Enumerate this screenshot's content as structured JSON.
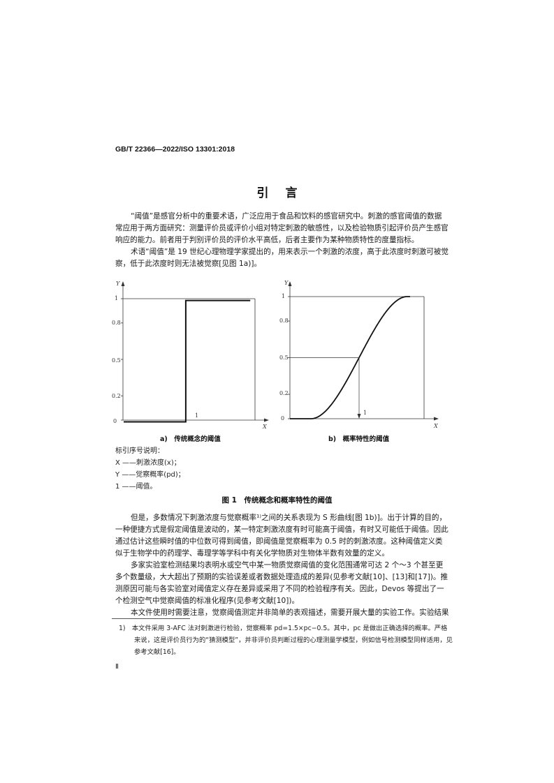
{
  "header": {
    "standard_code": "GB/T 22366—2022/ISO 13301:2018"
  },
  "title": "引言",
  "paragraphs": [
    [
      "“阈值”是感官分析中的重要术语，广泛应用于食品和饮料的感官研究中。刺激的感官阈值的数据",
      "常应用于两方面研究：测量评价员或评价小组对特定刺激的敏感性，以及检验物质引起评价员产生感官",
      "响应的能力。前者用于判别评价员的评价水平高低，后者主要作为某种物质特性的度量指标。"
    ],
    [
      "术语“阈值”是 19 世纪心理物理学家提出的，用来表示一个刺激的浓度，高于此浓度时刺激可被觉",
      "察，低于此浓度时则无法被觉察[见图 1a)]。"
    ],
    [
      "但是，多数情况下刺激浓度与觉察概率¹⁾之间的关系表现为 S 形曲线[图 1b)]。出于计算的目的，",
      "一种便捷方式是假定阈值是波动的，某一特定刺激浓度有时可能高于阈值，有时又可能低于阈值。因此",
      "通过估计这些瞬时值的中位数可得到阈值，即阈值是觉察概率为 0.5 时的刺激浓度。这种阈值定义类",
      "似于生物学中的药理学、毒理学等学科中有关化学物质对生物体半数有效量的定义。"
    ],
    [
      "多家实验室检测结果均表明水或空气中某一物质觉察阈值的变化范围通常可达 2 个～3 个甚至更",
      "多个数量级，大大超出了预期的实验误差或者数据处理造成的差异(见参考文献[10]、[13]和[17])。推",
      "测原因可能与各实验室对阈值定义存在差异或采用了不同的检验程序有关。因此，Devos 等提出了一",
      "个检测空气中觉察阈值的标准化程序(见参考文献[10])。"
    ],
    [
      "本文件使用时需要注意，觉察阈值测定并非简单的表观描述，需要开展大量的实验工作。实验结果"
    ]
  ],
  "figure": {
    "caption": "图 1　传统概念和概率特性的阈值",
    "sub_a": "a)　传统概念的阈值",
    "sub_b": "b)　概率特性的阈值",
    "legend_title": "标引序号说明：",
    "legend": [
      "X ——刺激浓度(x)；",
      "Y ——觉察概率(pd)；",
      "1 ——阈值。"
    ]
  },
  "chart_data": [
    {
      "type": "line",
      "title": "传统概念的阈值",
      "xlabel": "X",
      "ylabel": "Y",
      "yticks": [
        "0",
        "0.2",
        "0.5",
        "0.8",
        "1"
      ],
      "ylim": [
        0,
        1
      ],
      "series": [
        {
          "x": [
            0,
            0.48,
            0.48,
            1
          ],
          "y": [
            0,
            0,
            1,
            1
          ]
        }
      ],
      "annotation": "1"
    },
    {
      "type": "line",
      "title": "概率特性的阈值",
      "xlabel": "X",
      "ylabel": "Y",
      "yticks": [
        "0",
        "0.2",
        "0.5",
        "0.8",
        "1"
      ],
      "ylim": [
        0,
        1
      ],
      "series": [
        {
          "shape": "sigmoid",
          "midpoint_y": 0.5
        }
      ],
      "annotation": "1"
    }
  ],
  "footnote": [
    "1)　本文件采用 3-AFC 法对刺激进行检验，觉察概率 pd=1.5×pc−0.5。其中，pc 是做出正确选择的概率。严格",
    "来说，这是评价员行为的“猜测模型”，并非评价员判断过程的心理测量学模型，例如信号检测模型同样适用，见",
    "参考文献[16]。"
  ],
  "page_number": "Ⅱ"
}
